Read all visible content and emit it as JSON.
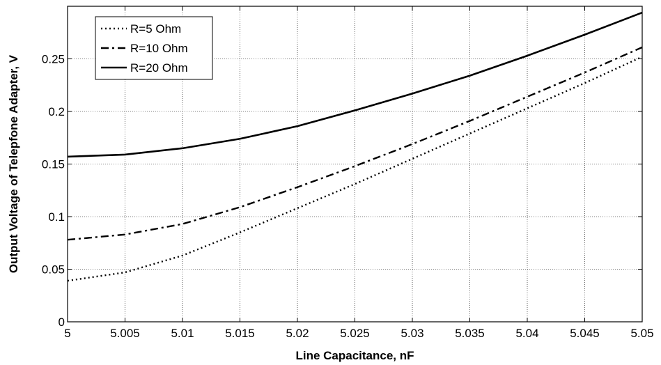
{
  "chart_data": {
    "type": "line",
    "title": "",
    "xlabel": "Line Capacitance, nF",
    "ylabel": "Output Voltage of Telepfone Adapter, V",
    "xlim": [
      5,
      5.05
    ],
    "ylim": [
      0,
      0.3
    ],
    "grid": true,
    "legend_position": "top-left",
    "x_ticks": [
      5,
      5.005,
      5.01,
      5.015,
      5.02,
      5.025,
      5.03,
      5.035,
      5.04,
      5.045,
      5.05
    ],
    "x_tick_labels": [
      "5",
      "5.005",
      "5.01",
      "5.015",
      "5.02",
      "5.025",
      "5.03",
      "5.035",
      "5.04",
      "5.045",
      "5.05"
    ],
    "y_ticks": [
      0,
      0.05,
      0.1,
      0.15,
      0.2,
      0.25
    ],
    "y_tick_labels": [
      "0",
      "0.05",
      "0.1",
      "0.15",
      "0.2",
      "0.25"
    ],
    "x": [
      5,
      5.005,
      5.01,
      5.015,
      5.02,
      5.025,
      5.03,
      5.035,
      5.04,
      5.045,
      5.05
    ],
    "series": [
      {
        "name": "R=5 Ohm",
        "style": "dotted",
        "color": "#000000",
        "values": [
          0.039,
          0.047,
          0.063,
          0.085,
          0.108,
          0.131,
          0.155,
          0.179,
          0.203,
          0.227,
          0.252
        ]
      },
      {
        "name": "R=10 Ohm",
        "style": "dashdot",
        "color": "#000000",
        "values": [
          0.078,
          0.083,
          0.093,
          0.109,
          0.128,
          0.148,
          0.169,
          0.191,
          0.214,
          0.237,
          0.261
        ]
      },
      {
        "name": "R=20 Ohm",
        "style": "solid",
        "color": "#000000",
        "values": [
          0.157,
          0.159,
          0.165,
          0.174,
          0.186,
          0.201,
          0.217,
          0.234,
          0.253,
          0.273,
          0.294
        ]
      }
    ]
  }
}
